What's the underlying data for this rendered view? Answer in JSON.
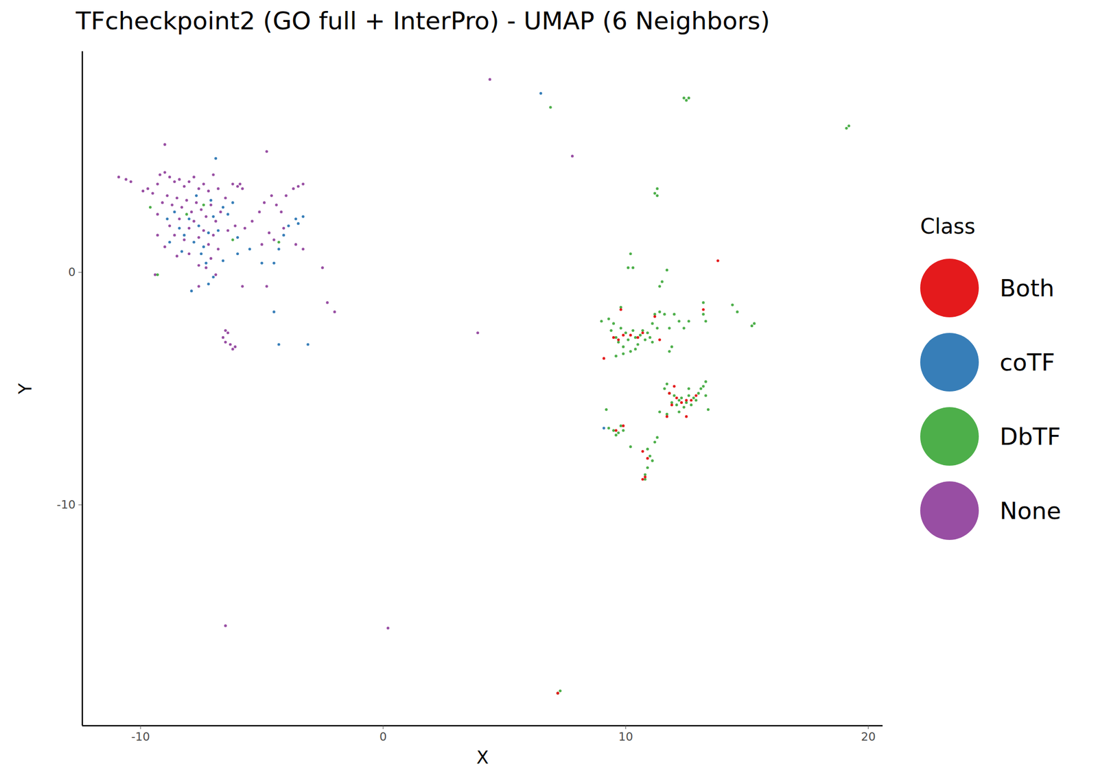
{
  "chart_data": {
    "type": "scatter",
    "title": "TFcheckpoint2 (GO full + InterPro) - UMAP (6 Neighbors)",
    "x_label": "X",
    "y_label": "Y",
    "legend_title": "Class",
    "legend": "right",
    "grid": false,
    "xlim": [
      -12.4,
      20.6
    ],
    "ylim": [
      -19.5,
      9.5
    ],
    "xticks": [
      -10,
      0,
      10,
      20
    ],
    "yticks": [
      -10,
      0
    ],
    "series": [
      {
        "name": "Both",
        "color": "#E41A1C",
        "x": [
          13.8,
          13.2,
          9.1,
          9.5,
          9.7,
          9.9,
          10.2,
          10.5,
          10.7,
          9.8,
          11.4,
          11.2,
          11.8,
          11.9,
          12.1,
          12.3,
          12.5,
          12.7,
          12.5,
          11.7,
          12.9,
          12.0,
          9.6,
          9.9,
          10.7,
          10.9,
          10.8,
          10.7,
          7.2
        ],
        "y": [
          0.5,
          -1.6,
          -3.7,
          -2.8,
          -2.9,
          -2.7,
          -2.7,
          -2.8,
          -2.6,
          -1.6,
          -2.9,
          -1.9,
          -5.2,
          -5.7,
          -5.4,
          -5.6,
          -5.5,
          -5.5,
          -6.2,
          -6.2,
          -5.3,
          -4.9,
          -6.8,
          -6.6,
          -7.7,
          -8.0,
          -8.8,
          -8.9,
          -18.1
        ]
      },
      {
        "name": "coTF",
        "color": "#377EB8",
        "x": [
          -8.6,
          -8.4,
          -8.2,
          -8.0,
          -7.8,
          -7.6,
          -7.4,
          -7.2,
          -7.0,
          -6.8,
          -6.6,
          -6.4,
          -6.2,
          -8.8,
          -8.9,
          -7.5,
          -7.3,
          -7.2,
          -7.9,
          -7.0,
          -6.9,
          -7.7,
          -6.0,
          -5.5,
          -4.5,
          -4.3,
          -3.1,
          -3.9,
          -3.6,
          -3.3,
          -3.5,
          -4.1,
          -4.5,
          -5.0,
          -4.3,
          -6.6,
          -8.3,
          6.5,
          9.1,
          -7.1,
          -6.0
        ],
        "y": [
          2.6,
          1.9,
          1.6,
          2.3,
          1.3,
          2.0,
          1.1,
          1.7,
          2.4,
          1.8,
          2.8,
          2.5,
          3.0,
          1.3,
          2.3,
          0.8,
          0.4,
          -0.5,
          -0.8,
          -0.2,
          4.9,
          3.3,
          1.5,
          1.0,
          -1.7,
          -3.1,
          -3.1,
          2.0,
          2.3,
          2.4,
          2.1,
          1.6,
          0.4,
          0.4,
          1.0,
          0.5,
          0.9,
          7.7,
          -6.7,
          3.1,
          0.8
        ]
      },
      {
        "name": "DbTF",
        "color": "#4DAF4A",
        "x": [
          12.4,
          12.5,
          12.6,
          6.9,
          19.2,
          19.1,
          11.2,
          11.3,
          11.3,
          10.2,
          10.1,
          10.3,
          11.7,
          11.5,
          11.4,
          9.3,
          9.4,
          9.5,
          9.6,
          9.7,
          9.8,
          9.8,
          9.9,
          10.0,
          10.1,
          10.2,
          10.3,
          10.4,
          10.5,
          10.6,
          10.7,
          10.8,
          10.9,
          11.0,
          11.1,
          11.2,
          11.3,
          11.4,
          11.6,
          11.8,
          12.0,
          12.2,
          12.4,
          12.6,
          13.2,
          13.2,
          13.3,
          14.4,
          14.6,
          15.3,
          15.2,
          9.6,
          9.9,
          10.4,
          11.9,
          11.8,
          11.1,
          9.0,
          11.6,
          11.7,
          11.8,
          11.9,
          12.0,
          12.1,
          12.2,
          12.3,
          12.4,
          12.5,
          12.6,
          12.7,
          12.8,
          12.9,
          13.0,
          13.1,
          13.2,
          13.3,
          13.3,
          13.4,
          12.2,
          11.7,
          11.4,
          12.6,
          9.3,
          9.5,
          9.6,
          9.7,
          9.8,
          9.9,
          9.2,
          10.2,
          10.9,
          11.0,
          11.1,
          10.9,
          10.8,
          10.8,
          11.2,
          11.3,
          7.2,
          7.3,
          -9.6,
          -9.3,
          -4.3,
          -7.4,
          -8.1,
          -6.2
        ],
        "y": [
          7.5,
          7.4,
          7.5,
          7.1,
          6.3,
          6.2,
          3.4,
          3.6,
          3.3,
          0.8,
          0.2,
          0.2,
          0.1,
          -0.4,
          -0.6,
          -2.0,
          -2.5,
          -2.2,
          -2.8,
          -3.0,
          -1.5,
          -2.4,
          -3.2,
          -2.6,
          -2.9,
          -3.4,
          -2.5,
          -2.8,
          -3.1,
          -2.7,
          -2.5,
          -2.9,
          -2.6,
          -2.8,
          -2.2,
          -1.8,
          -2.4,
          -1.7,
          -1.8,
          -2.4,
          -1.8,
          -2.1,
          -2.4,
          -2.1,
          -1.3,
          -1.8,
          -2.1,
          -1.4,
          -1.7,
          -2.2,
          -2.3,
          -3.6,
          -3.5,
          -3.3,
          -3.2,
          -3.4,
          -3.0,
          -2.1,
          -5.0,
          -4.8,
          -5.2,
          -5.6,
          -5.3,
          -5.7,
          -5.5,
          -5.4,
          -5.8,
          -5.6,
          -5.3,
          -5.7,
          -5.4,
          -5.5,
          -5.2,
          -5.0,
          -4.9,
          -4.7,
          -5.3,
          -5.9,
          -6.0,
          -6.1,
          -6.0,
          -5.0,
          -6.7,
          -6.8,
          -7.0,
          -6.9,
          -6.6,
          -6.8,
          -5.9,
          -7.5,
          -7.6,
          -7.9,
          -8.1,
          -8.4,
          -8.7,
          -8.9,
          -7.3,
          -7.1,
          -18.1,
          -18.0,
          2.8,
          -0.1,
          1.3,
          2.9,
          2.5,
          1.4
        ]
      },
      {
        "name": "None",
        "color": "#984EA3",
        "x": [
          -10.9,
          -10.6,
          -10.4,
          -9.9,
          -9.7,
          -9.5,
          -9.3,
          -9.2,
          -9.0,
          -8.8,
          -8.6,
          -8.4,
          -8.2,
          -8.0,
          -7.8,
          -7.6,
          -7.4,
          -7.2,
          -7.0,
          -6.8,
          -6.5,
          -6.2,
          -6.0,
          -5.8,
          -9.1,
          -8.9,
          -8.7,
          -8.5,
          -8.3,
          -8.1,
          -7.9,
          -7.7,
          -7.5,
          -7.3,
          -7.1,
          -6.9,
          -6.7,
          -8.8,
          -8.6,
          -8.4,
          -8.2,
          -8.0,
          -7.8,
          -7.6,
          -7.4,
          -7.2,
          -7.0,
          -6.8,
          -7.1,
          -7.3,
          -6.9,
          -7.6,
          -8.0,
          -8.5,
          -9.0,
          -9.3,
          -9.4,
          -6.4,
          -6.1,
          -5.7,
          -5.4,
          -5.1,
          -4.9,
          -4.6,
          -4.4,
          -4.2,
          -4.0,
          -3.7,
          -3.5,
          -3.3,
          -4.7,
          -4.5,
          -4.1,
          -3.6,
          -3.3,
          -5.0,
          -5.8,
          -4.8,
          -2.5,
          -2.3,
          -2.0,
          -6.6,
          -6.5,
          -6.4,
          -6.3,
          -6.2,
          -6.1,
          -6.5,
          -9.0,
          -4.8,
          4.4,
          7.8,
          3.9,
          -6.5,
          0.2,
          -9.3,
          -5.9,
          -7.6
        ],
        "y": [
          4.1,
          4.0,
          3.9,
          3.5,
          3.6,
          3.4,
          3.8,
          4.2,
          4.3,
          4.1,
          3.9,
          4.0,
          3.7,
          3.9,
          4.1,
          3.6,
          3.8,
          3.5,
          4.2,
          3.6,
          3.2,
          3.8,
          3.7,
          3.6,
          3.0,
          3.3,
          2.9,
          3.2,
          2.8,
          3.1,
          2.6,
          3.0,
          2.7,
          2.4,
          2.9,
          2.2,
          2.6,
          2.0,
          1.6,
          2.3,
          1.4,
          1.9,
          2.2,
          1.5,
          1.8,
          1.2,
          1.6,
          1.0,
          0.6,
          0.2,
          -0.1,
          0.3,
          0.8,
          0.7,
          1.1,
          1.6,
          -0.1,
          1.8,
          2.0,
          1.9,
          2.2,
          2.6,
          3.0,
          3.3,
          2.9,
          2.6,
          3.3,
          3.6,
          3.7,
          3.8,
          1.7,
          1.4,
          1.9,
          1.2,
          1.0,
          1.2,
          -0.6,
          -0.6,
          0.2,
          -1.3,
          -1.7,
          -2.8,
          -3.0,
          -2.6,
          -3.1,
          -3.3,
          -3.2,
          -2.5,
          5.5,
          5.2,
          8.3,
          5.0,
          -2.6,
          -15.2,
          -15.3,
          2.5,
          3.8,
          -0.6
        ]
      }
    ]
  }
}
